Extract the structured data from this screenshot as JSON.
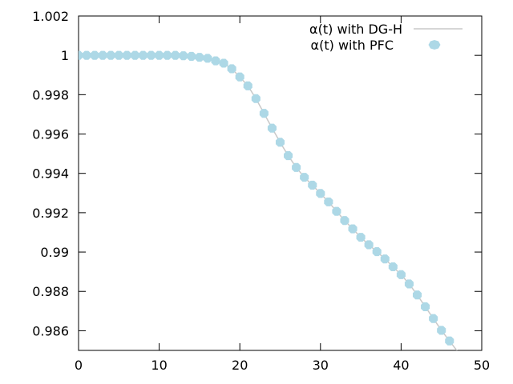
{
  "chart_data": {
    "type": "line",
    "title": "",
    "xlabel": "",
    "ylabel": "",
    "xlim": [
      0,
      50
    ],
    "ylim": [
      0.985,
      1.002
    ],
    "xticks": [
      "0",
      "10",
      "20",
      "30",
      "40",
      "50"
    ],
    "yticks": [
      "0.986",
      "0.988",
      "0.99",
      "0.992",
      "0.994",
      "0.996",
      "0.998",
      "1",
      "1.002"
    ],
    "grid": false,
    "legend_position": "top-right",
    "series": [
      {
        "name": "α(t) with DG-H",
        "style": "line",
        "color": "#c8c8c8",
        "x": [
          0,
          14,
          16,
          17,
          18,
          19,
          20,
          21,
          22,
          23,
          24,
          25,
          26,
          27,
          28,
          29,
          30,
          31,
          32,
          33,
          34,
          35,
          36,
          37,
          38,
          39,
          40,
          41,
          42,
          43,
          44,
          45,
          46,
          47,
          47.8
        ],
        "y": [
          1.0,
          1.0,
          0.99988,
          0.99972,
          0.9996,
          0.99932,
          0.9989,
          0.99845,
          0.9978,
          0.99705,
          0.9963,
          0.99558,
          0.9949,
          0.9943,
          0.9938,
          0.9934,
          0.99298,
          0.99255,
          0.99207,
          0.9916,
          0.99118,
          0.99075,
          0.99037,
          0.99002,
          0.98965,
          0.98925,
          0.98885,
          0.98838,
          0.98782,
          0.98722,
          0.98662,
          0.98602,
          0.98548,
          0.98495,
          0.98455
        ]
      },
      {
        "name": "α(t) with PFC",
        "style": "points",
        "color": "#add8e6",
        "x": [
          0,
          1,
          2,
          3,
          4,
          5,
          6,
          7,
          8,
          9,
          10,
          11,
          12,
          13,
          14,
          15,
          16,
          17,
          18,
          19,
          20,
          21,
          22,
          23,
          24,
          25,
          26,
          27,
          28,
          29,
          30,
          31,
          32,
          33,
          34,
          35,
          36,
          37,
          38,
          39,
          40,
          41,
          42,
          43,
          44,
          45,
          46
        ],
        "y": [
          1.0,
          1.0,
          1.0,
          1.0,
          1.0,
          1.0,
          1.0,
          1.0,
          1.0,
          1.0,
          1.0,
          1.0,
          1.0,
          0.99998,
          0.99995,
          0.9999,
          0.99985,
          0.99972,
          0.9996,
          0.99932,
          0.9989,
          0.99845,
          0.9978,
          0.99705,
          0.9963,
          0.99558,
          0.9949,
          0.9943,
          0.9938,
          0.9934,
          0.99298,
          0.99255,
          0.99207,
          0.9916,
          0.99118,
          0.99075,
          0.99037,
          0.99002,
          0.98965,
          0.98925,
          0.98885,
          0.98838,
          0.98782,
          0.98722,
          0.98662,
          0.98602,
          0.98548
        ]
      }
    ]
  }
}
